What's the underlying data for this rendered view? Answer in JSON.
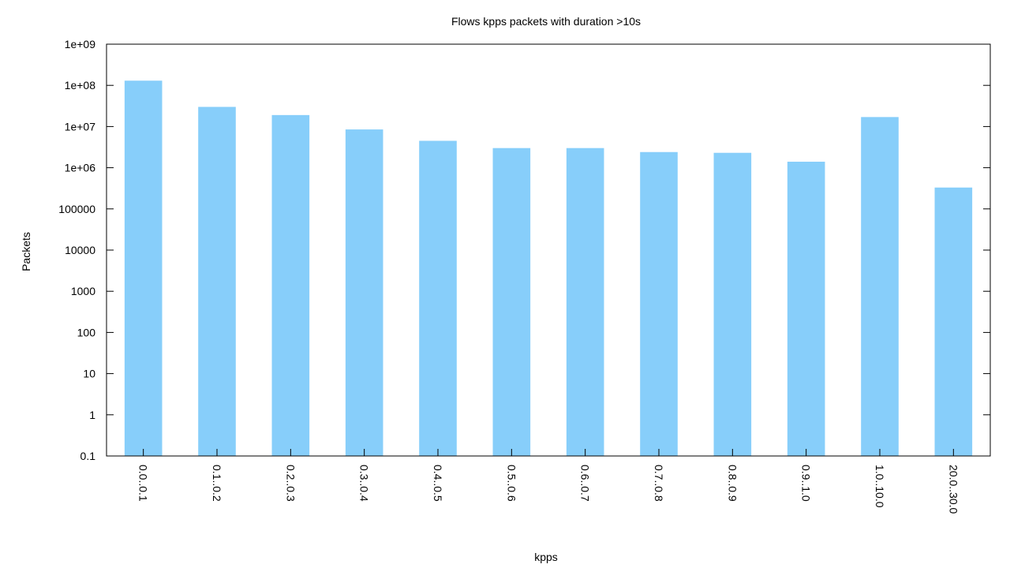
{
  "chart_data": {
    "type": "bar",
    "title": "Flows kpps packets with duration >10s",
    "xlabel": "kpps",
    "ylabel": "Packets",
    "yscale": "log",
    "ylim": [
      0.1,
      1000000000
    ],
    "yticks": [
      0.1,
      1,
      10,
      100,
      1000,
      10000,
      100000,
      1000000,
      10000000,
      100000000,
      1000000000
    ],
    "ytick_labels": [
      "0.1",
      "1",
      "10",
      "100",
      "1000",
      "10000",
      "100000",
      "1e+06",
      "1e+07",
      "1e+08",
      "1e+09"
    ],
    "categories": [
      "0.0..0.1",
      "0.1..0.2",
      "0.2..0.3",
      "0.3..0.4",
      "0.4..0.5",
      "0.5..0.6",
      "0.6..0.7",
      "0.7..0.8",
      "0.8..0.9",
      "0.9..1.0",
      "1.0..10.0",
      "20.0..30.0"
    ],
    "values": [
      130000000,
      30000000,
      19000000,
      8500000,
      4500000,
      3000000,
      3000000,
      2400000,
      2300000,
      1400000,
      17000000,
      330000
    ],
    "bar_color": "#87cefa",
    "grid": false,
    "legend": "none"
  }
}
